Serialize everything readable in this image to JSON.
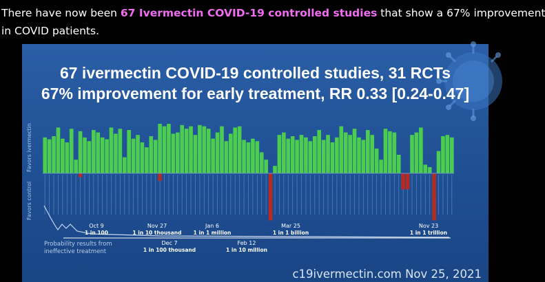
{
  "caption": {
    "prefix": "There have now been ",
    "highlight": "67 Ivermectin COVID-19 controlled studies",
    "suffix": " that show a 67% improvement",
    "line2": "in COVID patients."
  },
  "panel": {
    "title_line1": "67 ivermectin COVID-19 controlled studies, 31 RCTs",
    "title_line2": "67% improvement for early treatment, RR 0.33 [0.24-0.47]",
    "y_upper_label": "Favors ivermectin",
    "y_lower_label": "Favors control",
    "prob_label_line1": "Probability results from",
    "prob_label_line2": "ineffective treatment",
    "credit": "c19ivermectin.com Nov 25, 2021",
    "colors": {
      "positive": "#4ccd50",
      "negative": "#b52a22",
      "background": "#2358a0"
    }
  },
  "timeline": [
    {
      "date": "Oct 9",
      "odds": "1 in 100"
    },
    {
      "date": "Nov 27",
      "odds": "1 in 10 thousand"
    },
    {
      "date": "Dec 7",
      "odds": "1 in 100 thousand"
    },
    {
      "date": "Jan 6",
      "odds": "1 in 1 million"
    },
    {
      "date": "Feb 12",
      "odds": "1 in 10 million"
    },
    {
      "date": "Mar 25",
      "odds": "1 in 1 billion"
    },
    {
      "date": "Nov 23",
      "odds": "1 in 1 trillion"
    }
  ],
  "chart_data": {
    "type": "bar",
    "ylabel_upper": "Favors ivermectin",
    "ylabel_lower": "Favors control",
    "values": [
      58,
      55,
      60,
      74,
      56,
      50,
      72,
      22,
      68,
      58,
      52,
      70,
      66,
      58,
      55,
      74,
      64,
      72,
      26,
      70,
      56,
      62,
      50,
      42,
      60,
      54,
      80,
      76,
      80,
      64,
      66,
      78,
      72,
      76,
      62,
      78,
      76,
      72,
      56,
      66,
      76,
      52,
      64,
      74,
      76,
      54,
      50,
      56,
      52,
      34,
      22,
      -76,
      12,
      62,
      66,
      56,
      60,
      54,
      62,
      58,
      52,
      60,
      70,
      54,
      62,
      50,
      58,
      76,
      66,
      62,
      72,
      58,
      54,
      70,
      62,
      40,
      22,
      72,
      68,
      66,
      30,
      -26,
      -26,
      62,
      66,
      74,
      14,
      10,
      -76,
      36,
      60,
      62,
      58
    ],
    "small_negative_indices": [
      8,
      26
    ],
    "small_negative_values": [
      -6,
      -12
    ]
  }
}
